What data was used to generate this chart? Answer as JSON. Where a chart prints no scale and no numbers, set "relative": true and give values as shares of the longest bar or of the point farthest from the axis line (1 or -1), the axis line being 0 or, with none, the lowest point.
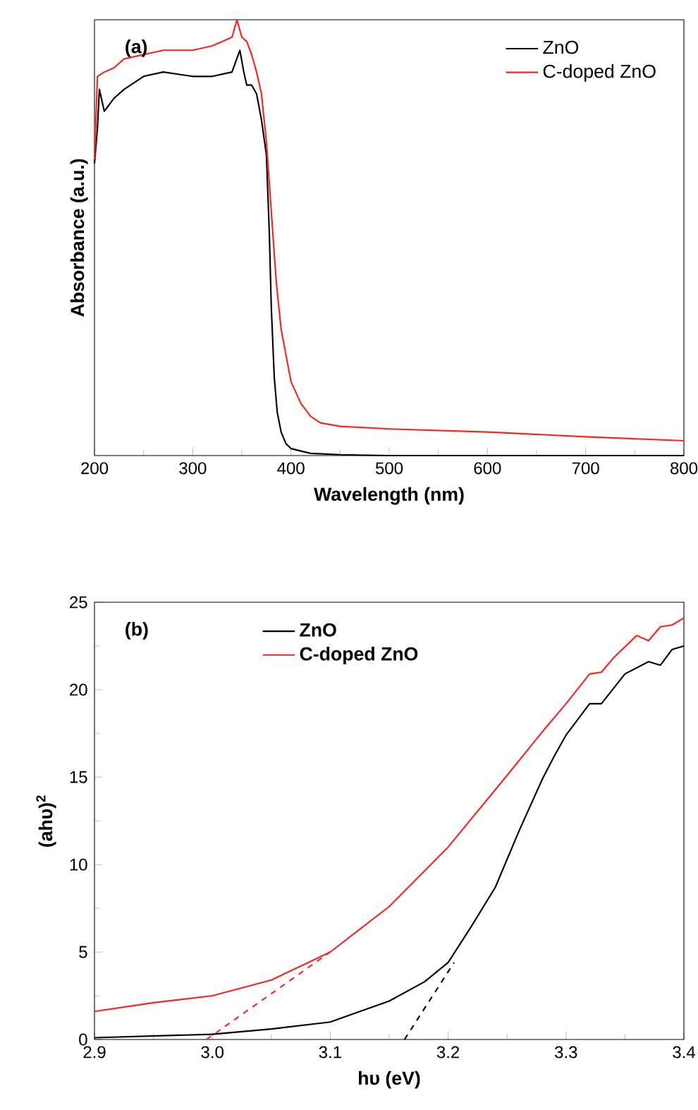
{
  "chart_data": [
    {
      "type": "line",
      "xlabel": "Wavelength (nm)",
      "ylabel": "Absorbance (a.u.)",
      "annotations": [
        "(a)"
      ],
      "relative": true,
      "tick_labels": "x",
      "xlim": [
        200,
        800
      ],
      "xticks": [
        200,
        300,
        400,
        500,
        600,
        700,
        800
      ],
      "legend": "top right",
      "series": [
        {
          "name": "ZnO",
          "color": "#000000",
          "x": [
            200,
            203,
            205,
            210,
            220,
            230,
            250,
            270,
            300,
            320,
            340,
            348,
            352,
            355,
            360,
            365,
            370,
            375,
            378,
            380,
            383,
            386,
            390,
            395,
            400,
            420,
            450,
            500,
            800
          ],
          "values": [
            0.67,
            0.75,
            0.84,
            0.79,
            0.82,
            0.84,
            0.87,
            0.88,
            0.87,
            0.87,
            0.88,
            0.93,
            0.88,
            0.85,
            0.85,
            0.83,
            0.77,
            0.69,
            0.51,
            0.34,
            0.18,
            0.1,
            0.054,
            0.027,
            0.016,
            0.005,
            0.002,
            0,
            0
          ]
        },
        {
          "name": "C-doped ZnO",
          "color": "#ff2020",
          "x": [
            200,
            203,
            210,
            220,
            230,
            250,
            270,
            300,
            320,
            340,
            345,
            350,
            355,
            360,
            365,
            370,
            375,
            380,
            385,
            390,
            395,
            400,
            410,
            420,
            430,
            450,
            500,
            600,
            700,
            800
          ],
          "values": [
            0.68,
            0.87,
            0.88,
            0.89,
            0.91,
            0.92,
            0.93,
            0.93,
            0.94,
            0.96,
            1.0,
            0.96,
            0.95,
            0.92,
            0.88,
            0.83,
            0.72,
            0.56,
            0.4,
            0.29,
            0.23,
            0.17,
            0.12,
            0.09,
            0.075,
            0.067,
            0.061,
            0.054,
            0.043,
            0.034
          ]
        }
      ]
    },
    {
      "type": "line",
      "xlabel": "hυ (eV)",
      "ylabel": "(ahυ)$^{2}$",
      "annotations": [
        "(b)"
      ],
      "xlim": [
        2.9,
        3.4
      ],
      "ylim": [
        0,
        25
      ],
      "xticks": [
        {
          "value": 2.9,
          "label": "2.9"
        },
        {
          "value": 3,
          "label": "3.0"
        },
        {
          "value": 3.1,
          "label": "3.1"
        },
        {
          "value": 3.2,
          "label": "3.2"
        },
        {
          "value": 3.3,
          "label": "3.3"
        },
        {
          "value": 3.4,
          "label": "3.4"
        }
      ],
      "yticks": [
        0,
        5,
        10,
        15,
        20,
        25
      ],
      "legend": "top",
      "series": [
        {
          "name": "ZnO",
          "color": "#000000",
          "x": [
            2.9,
            3.0,
            3.05,
            3.1,
            3.15,
            3.18,
            3.2,
            3.22,
            3.24,
            3.26,
            3.28,
            3.29,
            3.3,
            3.32,
            3.33,
            3.35,
            3.37,
            3.38,
            3.39,
            3.4
          ],
          "values": [
            0.1,
            0.3,
            0.6,
            1.0,
            2.2,
            3.3,
            4.4,
            6.5,
            8.7,
            11.9,
            14.9,
            16.2,
            17.4,
            19.2,
            19.2,
            20.9,
            21.6,
            21.4,
            22.3,
            22.5
          ]
        },
        {
          "name": "C-doped ZnO",
          "color": "#ff2020",
          "x": [
            2.9,
            2.95,
            3.0,
            3.05,
            3.1,
            3.15,
            3.2,
            3.25,
            3.28,
            3.3,
            3.32,
            3.33,
            3.34,
            3.36,
            3.37,
            3.38,
            3.39,
            3.4
          ],
          "values": [
            1.6,
            2.1,
            2.5,
            3.4,
            5.0,
            7.6,
            11.0,
            15.1,
            17.6,
            19.2,
            20.9,
            21.0,
            21.8,
            23.1,
            22.8,
            23.6,
            23.7,
            24.1
          ]
        },
        {
          "type": "line",
          "color": "#ff2020",
          "line_style": "dashed",
          "x": [
            2.995,
            3.1
          ],
          "values": [
            0,
            5.0
          ]
        },
        {
          "type": "line",
          "color": "#000000",
          "line_style": "dashed",
          "x": [
            3.163,
            3.205
          ],
          "values": [
            0,
            4.4
          ]
        }
      ]
    }
  ]
}
